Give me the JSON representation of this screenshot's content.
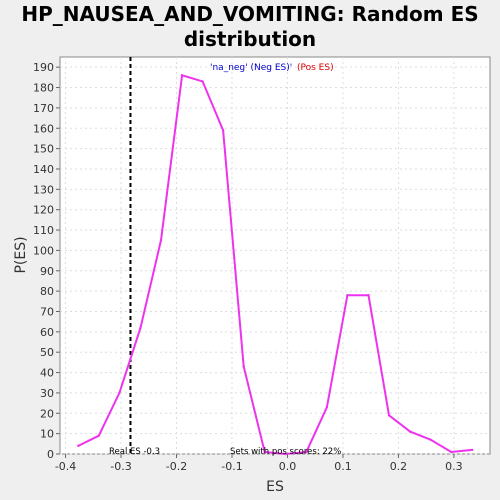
{
  "chart_data": {
    "type": "line",
    "title_line1": "HP_NAUSEA_AND_VOMITING: Random ES",
    "title_line2": "distribution",
    "xlabel": "ES",
    "ylabel": "P(ES)",
    "xlim": [
      -0.41,
      0.365
    ],
    "ylim": [
      0,
      195
    ],
    "x_ticks": [
      -0.4,
      -0.3,
      -0.2,
      -0.1,
      0.0,
      0.1,
      0.2,
      0.3
    ],
    "x_tick_labels": [
      "-0.4",
      "-0.3",
      "-0.2",
      "-0.1",
      "0.0",
      "0.1",
      "0.2",
      "0.3"
    ],
    "y_ticks": [
      0,
      10,
      20,
      30,
      40,
      50,
      60,
      70,
      80,
      90,
      100,
      110,
      120,
      130,
      140,
      150,
      160,
      170,
      180,
      190
    ],
    "y_tick_labels": [
      "0",
      "10",
      "20",
      "30",
      "40",
      "50",
      "60",
      "70",
      "80",
      "90",
      "100",
      "110",
      "120",
      "130",
      "140",
      "150",
      "160",
      "170",
      "180",
      "190"
    ],
    "grid": true,
    "series": [
      {
        "color": "#ee33ee",
        "x": [
          -0.377,
          -0.34,
          -0.303,
          -0.265,
          -0.228,
          -0.19,
          -0.153,
          -0.116,
          -0.079,
          -0.041,
          -0.004,
          0.034,
          0.071,
          0.108,
          0.146,
          0.183,
          0.221,
          0.258,
          0.295,
          0.333
        ],
        "y": [
          4,
          9,
          30,
          62,
          105,
          186,
          183,
          159,
          43,
          1,
          0,
          1,
          23,
          78,
          78,
          19,
          11,
          7,
          1,
          2
        ]
      }
    ],
    "real_es": {
      "value": -0.283,
      "label": "Real ES -0.3",
      "color": "#000000"
    },
    "legend": {
      "placement": "top-center",
      "neg_label": "'na_neg' (Neg ES)'",
      "neg_color": "#0000cc",
      "pos_label": " (Pos ES)",
      "pos_color": "#dd0000"
    },
    "annotation_pos_scores": "Sets with pos scores: 22%"
  }
}
